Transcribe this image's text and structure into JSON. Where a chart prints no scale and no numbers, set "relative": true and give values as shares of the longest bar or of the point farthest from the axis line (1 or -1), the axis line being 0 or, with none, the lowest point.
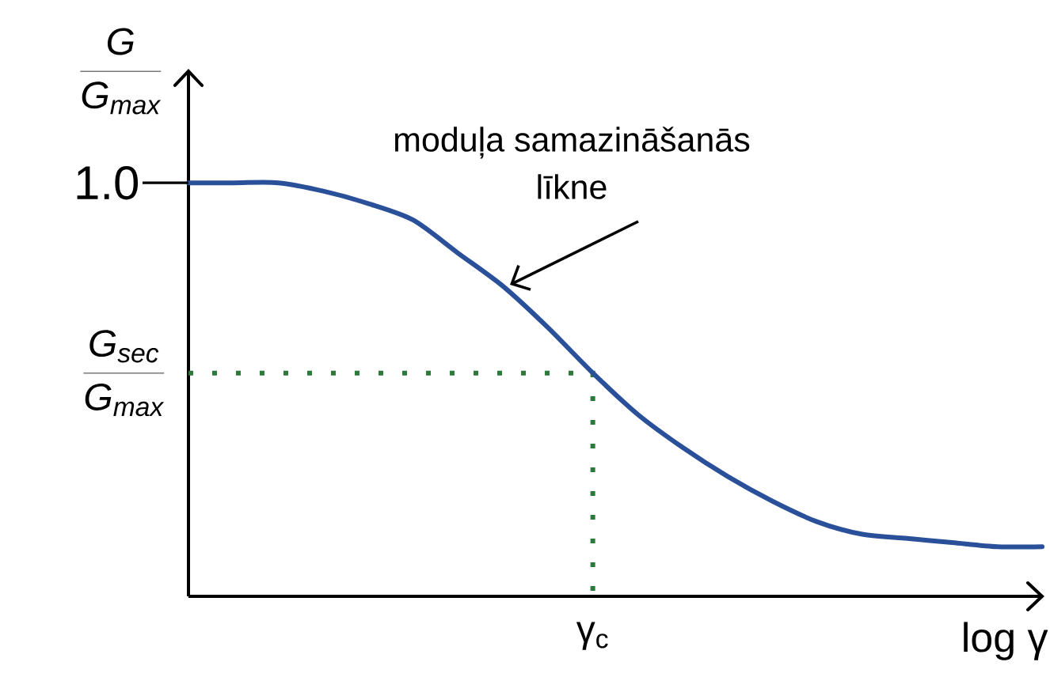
{
  "chart_data": {
    "type": "line",
    "relative": true,
    "ylabel": "\\frac{G}{G_{max}}",
    "xlabel": "log γ",
    "categories": [
      null,
      null,
      null,
      null,
      null,
      null,
      null,
      null,
      null,
      null,
      null,
      null,
      null,
      null,
      null,
      null,
      null,
      null,
      null,
      null
    ],
    "series": [
      {
        "color": "#2a5099",
        "values": [
          1.0,
          1.0,
          1.0,
          0.98,
          0.95,
          0.91,
          0.83,
          0.75,
          0.65,
          0.54,
          0.44,
          0.36,
          0.29,
          0.23,
          0.18,
          0.15,
          0.14,
          0.13,
          0.12,
          0.12
        ]
      }
    ],
    "ref_lines": [
      {
        "axis": "y",
        "value": 0.54,
        "label": "\\frac{G_{sec}}{G_{max}}",
        "color": "#2b7a3b",
        "line_style": "dotted"
      }
    ],
    "annotations": [
      "1.0",
      "moduļa samazināšanās līkne",
      "γ$_{c}$"
    ]
  }
}
